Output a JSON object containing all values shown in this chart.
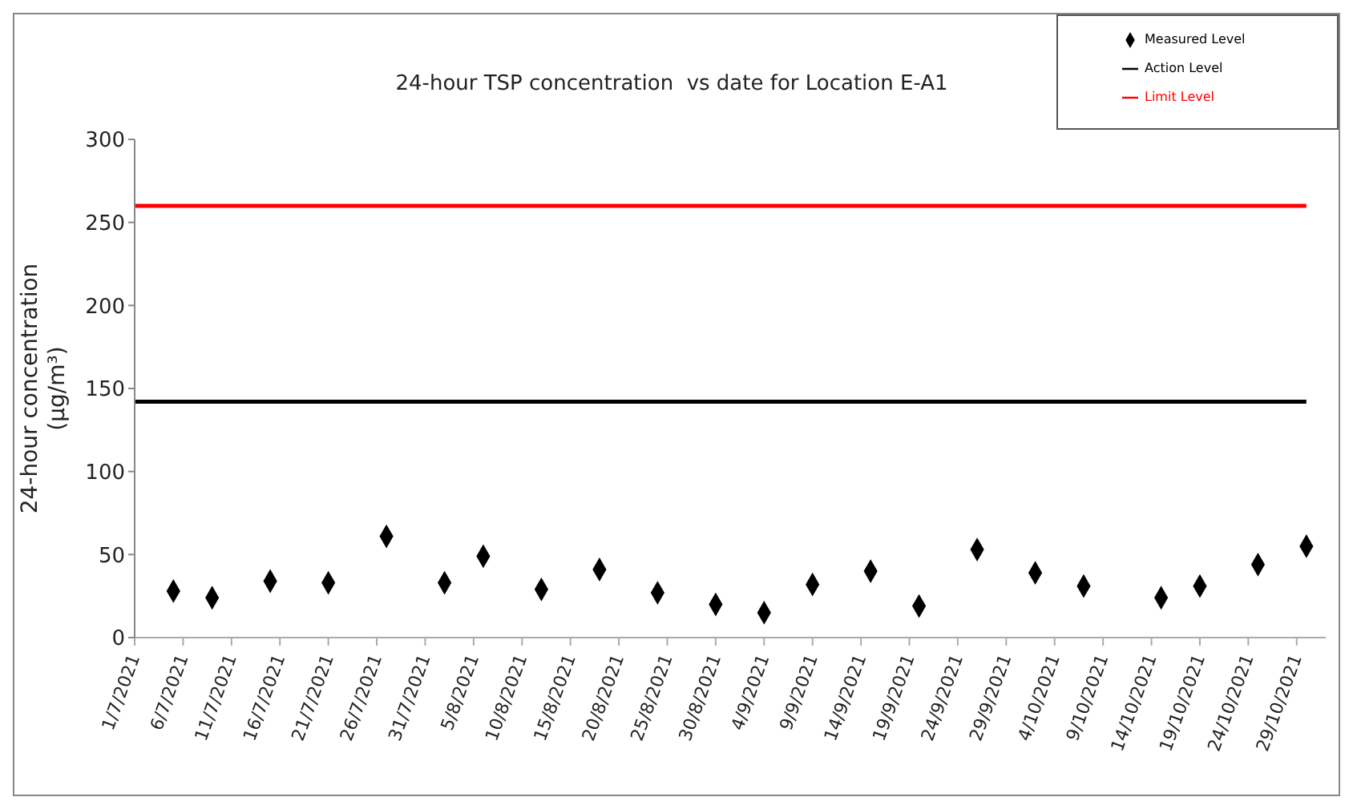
{
  "chart_data": {
    "type": "scatter",
    "title": "24-hour TSP concentration  vs date for Location E-A1",
    "ylabel": "24-hour concentration (µg/m³)",
    "xlim": [
      "2021-07-01",
      "2021-11-01"
    ],
    "xticks": [
      {
        "value": "2021-07-01",
        "label": "1/7/2021"
      },
      {
        "value": "2021-07-06",
        "label": "6/7/2021"
      },
      {
        "value": "2021-07-11",
        "label": "11/7/2021"
      },
      {
        "value": "2021-07-16",
        "label": "16/7/2021"
      },
      {
        "value": "2021-07-21",
        "label": "21/7/2021"
      },
      {
        "value": "2021-07-26",
        "label": "26/7/2021"
      },
      {
        "value": "2021-07-31",
        "label": "31/7/2021"
      },
      {
        "value": "2021-08-05",
        "label": "5/8/2021"
      },
      {
        "value": "2021-08-10",
        "label": "10/8/2021"
      },
      {
        "value": "2021-08-15",
        "label": "15/8/2021"
      },
      {
        "value": "2021-08-20",
        "label": "20/8/2021"
      },
      {
        "value": "2021-08-25",
        "label": "25/8/2021"
      },
      {
        "value": "2021-08-30",
        "label": "30/8/2021"
      },
      {
        "value": "2021-09-04",
        "label": "4/9/2021"
      },
      {
        "value": "2021-09-09",
        "label": "9/9/2021"
      },
      {
        "value": "2021-09-14",
        "label": "14/9/2021"
      },
      {
        "value": "2021-09-19",
        "label": "19/9/2021"
      },
      {
        "value": "2021-09-24",
        "label": "24/9/2021"
      },
      {
        "value": "2021-09-29",
        "label": "29/9/2021"
      },
      {
        "value": "2021-10-04",
        "label": "4/10/2021"
      },
      {
        "value": "2021-10-09",
        "label": "9/10/2021"
      },
      {
        "value": "2021-10-14",
        "label": "14/10/2021"
      },
      {
        "value": "2021-10-19",
        "label": "19/10/2021"
      },
      {
        "value": "2021-10-24",
        "label": "24/10/2021"
      },
      {
        "value": "2021-10-29",
        "label": "29/10/2021"
      }
    ],
    "ylim": [
      0,
      300
    ],
    "yticks": [
      0,
      50,
      100,
      150,
      200,
      250,
      300
    ],
    "grid": false,
    "legend": "top right",
    "series": [
      {
        "name": "Measured Level",
        "type": "scatter",
        "marker": "diamond",
        "color": "#000000",
        "x": [
          "2021-07-05",
          "2021-07-09",
          "2021-07-15",
          "2021-07-21",
          "2021-07-27",
          "2021-08-02",
          "2021-08-06",
          "2021-08-12",
          "2021-08-18",
          "2021-08-24",
          "2021-08-30",
          "2021-09-04",
          "2021-09-09",
          "2021-09-15",
          "2021-09-20",
          "2021-09-26",
          "2021-10-02",
          "2021-10-07",
          "2021-10-15",
          "2021-10-19",
          "2021-10-25",
          "2021-10-30"
        ],
        "values": [
          28,
          24,
          34,
          33,
          61,
          33,
          49,
          29,
          41,
          27,
          20,
          15,
          32,
          40,
          19,
          53,
          39,
          31,
          24,
          31,
          44,
          55
        ]
      },
      {
        "name": "Action Level",
        "type": "line",
        "marker": "none",
        "color": "#000000",
        "x": [
          "2021-07-01",
          "2021-10-30"
        ],
        "values": [
          142,
          142
        ]
      },
      {
        "name": "Limit Level",
        "type": "line",
        "marker": "none",
        "color": "#ff0000",
        "x": [
          "2021-07-01",
          "2021-10-30"
        ],
        "values": [
          260,
          260
        ]
      }
    ]
  }
}
